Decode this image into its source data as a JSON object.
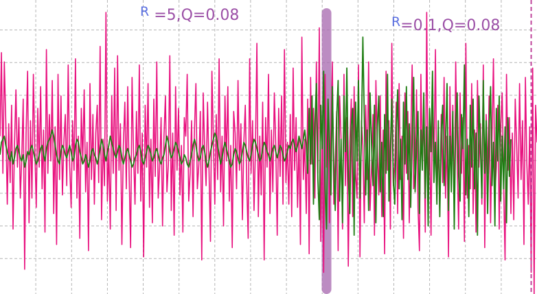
{
  "annotations": {
    "left": {
      "r": "R",
      "text": " =5,Q=0.08"
    },
    "right": {
      "r": "R",
      "text": "=0.1,Q=0.08"
    }
  },
  "colors": {
    "measured": "#e8107e",
    "filtered": "#1e7d12",
    "grid": "#b3b3b3",
    "marker": "#a565ad",
    "dashed_marker": "#c0479c"
  },
  "chart_data": {
    "type": "line",
    "title": "",
    "xlabel": "",
    "ylabel": "",
    "grid": true,
    "xlim": [
      0,
      370
    ],
    "ylim": [
      -4.5,
      5
    ],
    "vertical_markers": [
      {
        "x": 225,
        "style": "solid"
      },
      {
        "x": 366,
        "style": "dashed"
      }
    ],
    "series": [
      {
        "values": [
          0.6,
          3.3,
          -0.6,
          3.0,
          1.0,
          -1.6,
          1.0,
          -0.9,
          1.6,
          -2.4,
          0.3,
          2.1,
          -0.4,
          1.2,
          -1.4,
          -0.1,
          1.8,
          -3.7,
          0.7,
          2.7,
          -2.2,
          1.1,
          -1.4,
          2.6,
          0.2,
          -1.7,
          1.5,
          -0.4,
          2.2,
          -1.1,
          0.8,
          -2.5,
          3.4,
          -0.6,
          1.3,
          -0.2,
          2.4,
          -1.9,
          0.9,
          -2.9,
          2.6,
          -0.8,
          1.9,
          -1.3,
          0.4,
          1.3,
          -1.0,
          2.9,
          -0.3,
          -1.7,
          1.1,
          -0.5,
          3.1,
          -1.4,
          0.6,
          -2.7,
          1.5,
          -0.2,
          2.1,
          -1.2,
          0.4,
          -3.1,
          2.3,
          -0.8,
          1.3,
          -1.6,
          0.7,
          1.6,
          -0.9,
          3.5,
          -2.1,
          0.5,
          -1.0,
          4.6,
          -1.5,
          0.2,
          -2.4,
          1.9,
          -0.6,
          2.8,
          -1.8,
          3.2,
          -0.5,
          1.0,
          -2.9,
          0.3,
          1.7,
          -1.1,
          2.2,
          -0.7,
          -3.0,
          2.5,
          0.1,
          -1.6,
          1.4,
          -0.6,
          2.9,
          -1.5,
          0.7,
          -3.3,
          1.6,
          -0.4,
          2.3,
          -1.7,
          0.5,
          -2.2,
          1.8,
          -0.7,
          3.0,
          -1.4,
          -0.4,
          1.2,
          -2.3,
          0.6,
          1.9,
          -1.2,
          -0.3,
          3.2,
          -1.8,
          0.7,
          -2.6,
          2.2,
          -0.5,
          1.5,
          -1.3,
          0.3,
          -2.5,
          1.2,
          0.6,
          2.6,
          -1.5,
          -0.6,
          1.1,
          -2.0,
          0.8,
          2.3,
          -1.1,
          -0.3,
          1.4,
          -3.4,
          2.0,
          0.2,
          -1.0,
          1.7,
          -0.4,
          -2.8,
          2.7,
          0.5,
          -1.6,
          1.3,
          -0.8,
          3.1,
          -1.2,
          0.6,
          -2.3,
          1.9,
          -0.2,
          2.2,
          -1.5,
          0.3,
          -3.0,
          1.4,
          0.7,
          -1.1,
          2.4,
          -0.5,
          1.0,
          -2.1,
          0.4,
          1.6,
          -0.9,
          -2.7,
          3.1,
          -0.6,
          1.1,
          -1.8,
          0.2,
          3.6,
          -2.0,
          0.6,
          -1.3,
          1.7,
          -3.4,
          1.2,
          -0.4,
          2.6,
          -1.9,
          0.8,
          -1.2,
          2.0,
          0.3,
          -2.6,
          1.5,
          -0.7,
          1.9,
          -1.6,
          3.4,
          -0.9,
          0.4,
          -1.6,
          1.3,
          -2.0,
          2.8,
          -0.5,
          1.2,
          -1.7,
          0.6,
          -2.9,
          3.8,
          -0.8,
          0.5,
          -1.9,
          1.8,
          -3.2,
          2.5,
          -0.3,
          1.5,
          -1.4,
          3.0,
          -0.6,
          4.1,
          -2.8,
          1.0,
          -3.8,
          2.6,
          -0.4,
          1.7,
          -2.2,
          0.7,
          3.0,
          -1.6,
          -0.2,
          1.4,
          -3.1,
          1.9,
          0.5,
          -2.4,
          2.6,
          -1.0,
          1.2,
          -3.6,
          0.4,
          1.8,
          -2.0,
          2.2,
          -0.6,
          -1.4,
          2.9,
          -3.3,
          1.1,
          0.3,
          -2.2,
          1.6,
          -0.8,
          3.0,
          -1.8,
          -0.4,
          1.3,
          -2.6,
          2.4,
          0.2,
          -1.3,
          1.9,
          -2.0,
          0.8,
          -3.2,
          2.7,
          -0.5,
          1.1,
          -2.4,
          3.6,
          -1.0,
          -0.3,
          1.7,
          -1.9,
          2.3,
          -0.8,
          0.6,
          -2.7,
          2.0,
          -0.6,
          1.4,
          -2.2,
          0.5,
          2.9,
          -1.1,
          -0.5,
          2.1,
          -1.7,
          -3.1,
          2.6,
          -0.4,
          1.5,
          -2.5,
          4.6,
          -1.2,
          0.7,
          -2.6,
          1.9,
          -0.3,
          3.4,
          -1.5,
          0.4,
          -2.0,
          1.3,
          -0.9,
          2.5,
          -1.4,
          0.6,
          -3.3,
          2.2,
          -0.7,
          1.6,
          -1.8,
          3.0,
          -0.2,
          -2.4,
          2.0,
          -0.6,
          1.2,
          -2.8,
          3.6,
          -1.4,
          0.3,
          -1.1,
          2.3,
          -1.9,
          0.8,
          -2.5,
          2.4,
          -0.4,
          1.0,
          -1.6,
          2.9,
          -3.0,
          1.3,
          -0.6,
          1.9,
          -2.2,
          0.5,
          3.1,
          -1.3,
          -0.4,
          1.6,
          -2.4,
          0.9,
          2.0,
          -1.0,
          -3.4,
          2.6,
          -0.5,
          1.2,
          -1.9,
          0.7,
          -2.1,
          1.8,
          0.3,
          -1.4,
          2.3,
          -0.8,
          1.1,
          -2.9,
          2.5,
          -0.3,
          -1.6,
          0.9,
          -3.8,
          2.8,
          -4.5,
          1.6,
          0.4
        ]
      },
      {
        "values": [
          0.0,
          0.4,
          0.5,
          0.6,
          0.3,
          0.1,
          -0.1,
          -0.2,
          0.1,
          -0.3,
          -0.1,
          0.2,
          0.3,
          0.1,
          -0.1,
          -0.2,
          0.0,
          -0.4,
          -0.2,
          0.1,
          0.0,
          0.2,
          0.3,
          0.1,
          -0.1,
          -0.3,
          -0.2,
          0.0,
          0.2,
          0.3,
          0.0,
          -0.2,
          0.2,
          0.4,
          0.5,
          0.6,
          0.8,
          0.6,
          0.3,
          0.0,
          -0.2,
          -0.3,
          0.1,
          0.3,
          0.2,
          0.0,
          -0.1,
          0.1,
          0.3,
          0.1,
          -0.2,
          -0.1,
          0.3,
          0.5,
          0.4,
          0.1,
          -0.1,
          -0.3,
          -0.2,
          0.0,
          -0.2,
          -0.4,
          -0.2,
          0.1,
          0.2,
          0.0,
          -0.1,
          -0.3,
          -0.1,
          0.2,
          0.5,
          0.3,
          0.0,
          -0.2,
          0.1,
          0.3,
          0.6,
          0.4,
          0.2,
          0.0,
          -0.1,
          0.1,
          0.3,
          0.2,
          -0.1,
          -0.3,
          -0.1,
          0.1,
          0.2,
          0.0,
          -0.2,
          -0.4,
          -0.3,
          -0.1,
          0.0,
          0.2,
          0.3,
          0.1,
          -0.2,
          -0.3,
          -0.1,
          0.1,
          0.3,
          0.2,
          0.0,
          -0.2,
          -0.1,
          0.1,
          0.2,
          0.0,
          -0.2,
          -0.3,
          -0.1,
          0.0,
          0.3,
          0.6,
          0.4,
          0.1,
          -0.1,
          0.0,
          0.2,
          0.4,
          0.3,
          0.1,
          -0.1,
          -0.3,
          -0.2,
          0.0,
          -0.1,
          -0.3,
          -0.4,
          -0.2,
          0.0,
          0.3,
          0.5,
          0.3,
          0.0,
          -0.2,
          -0.1,
          0.2,
          0.3,
          0.1,
          -0.2,
          -0.4,
          -0.2,
          0.1,
          0.3,
          0.5,
          0.7,
          0.6,
          0.3,
          0.0,
          -0.3,
          -0.1,
          0.2,
          0.4,
          0.2,
          0.0,
          -0.2,
          -0.4,
          -0.3,
          0.0,
          0.2,
          0.1,
          -0.1,
          -0.3,
          -0.2,
          0.1,
          0.4,
          0.3,
          0.1,
          -0.1,
          -0.2,
          0.0,
          0.3,
          0.5,
          0.4,
          0.2,
          0.0,
          -0.2,
          -0.1,
          0.2,
          0.4,
          0.3,
          0.1,
          0.0,
          -0.2,
          0.0,
          0.2,
          0.3,
          0.1,
          -0.1,
          0.1,
          0.3,
          0.2,
          0.0,
          -0.2,
          -0.1,
          0.1,
          0.3,
          0.2,
          0.4,
          0.5,
          0.3,
          0.1,
          0.3,
          0.6,
          0.4,
          0.2,
          0.5,
          0.8,
          0.3,
          -0.6,
          1.5,
          -0.3,
          1.9,
          -1.6,
          1.0,
          2.3,
          -0.8,
          -2.1,
          1.6,
          0.2,
          2.7,
          -1.1,
          -2.4,
          1.8,
          0.4,
          -1.3,
          2.2,
          -0.5,
          -1.8,
          1.2,
          2.4,
          -1.5,
          0.5,
          -2.2,
          1.9,
          0.1,
          2.8,
          -0.7,
          -1.9,
          0.9,
          1.5,
          -2.6,
          1.7,
          -0.2,
          2.4,
          -1.4,
          0.6,
          3.8,
          1.2,
          -1.3,
          0.8,
          -1.8,
          2.0,
          0.3,
          -1.0,
          1.6,
          -2.2,
          0.9,
          1.9,
          -1.2,
          0.4,
          -2.0,
          1.3,
          -0.6,
          2.6,
          -1.5,
          0.2,
          1.8,
          -0.9,
          -1.6,
          0.7,
          2.1,
          -1.1,
          0.5,
          -2.1,
          1.7,
          -0.3,
          2.2,
          -0.8,
          1.0,
          -1.7,
          0.6,
          2.5,
          -1.2,
          0.3,
          1.4,
          -1.9,
          0.8,
          -0.5,
          2.0,
          -1.4,
          0.9,
          -2.3,
          1.5,
          0.1,
          2.7,
          -0.9,
          0.4,
          -1.6,
          1.1,
          -2.0,
          0.7,
          1.6,
          -1.0,
          0.3,
          2.3,
          -1.8,
          0.6,
          -1.2,
          1.4,
          -2.4,
          1.0,
          2.0,
          -0.7,
          -1.5,
          1.3,
          0.2,
          2.9,
          -1.3,
          0.5,
          -2.0,
          1.6,
          -0.4,
          1.8,
          -1.1,
          0.7,
          -2.6,
          1.9,
          0.3,
          -1.4,
          2.4,
          -0.6,
          1.1,
          -1.9,
          0.8,
          2.2,
          -1.0,
          0.4,
          -2.3,
          1.5,
          -0.2,
          1.9,
          -1.5,
          0.6,
          -1.1,
          0.9,
          -2.2,
          1.2,
          -0.7,
          0.5
        ]
      }
    ]
  }
}
